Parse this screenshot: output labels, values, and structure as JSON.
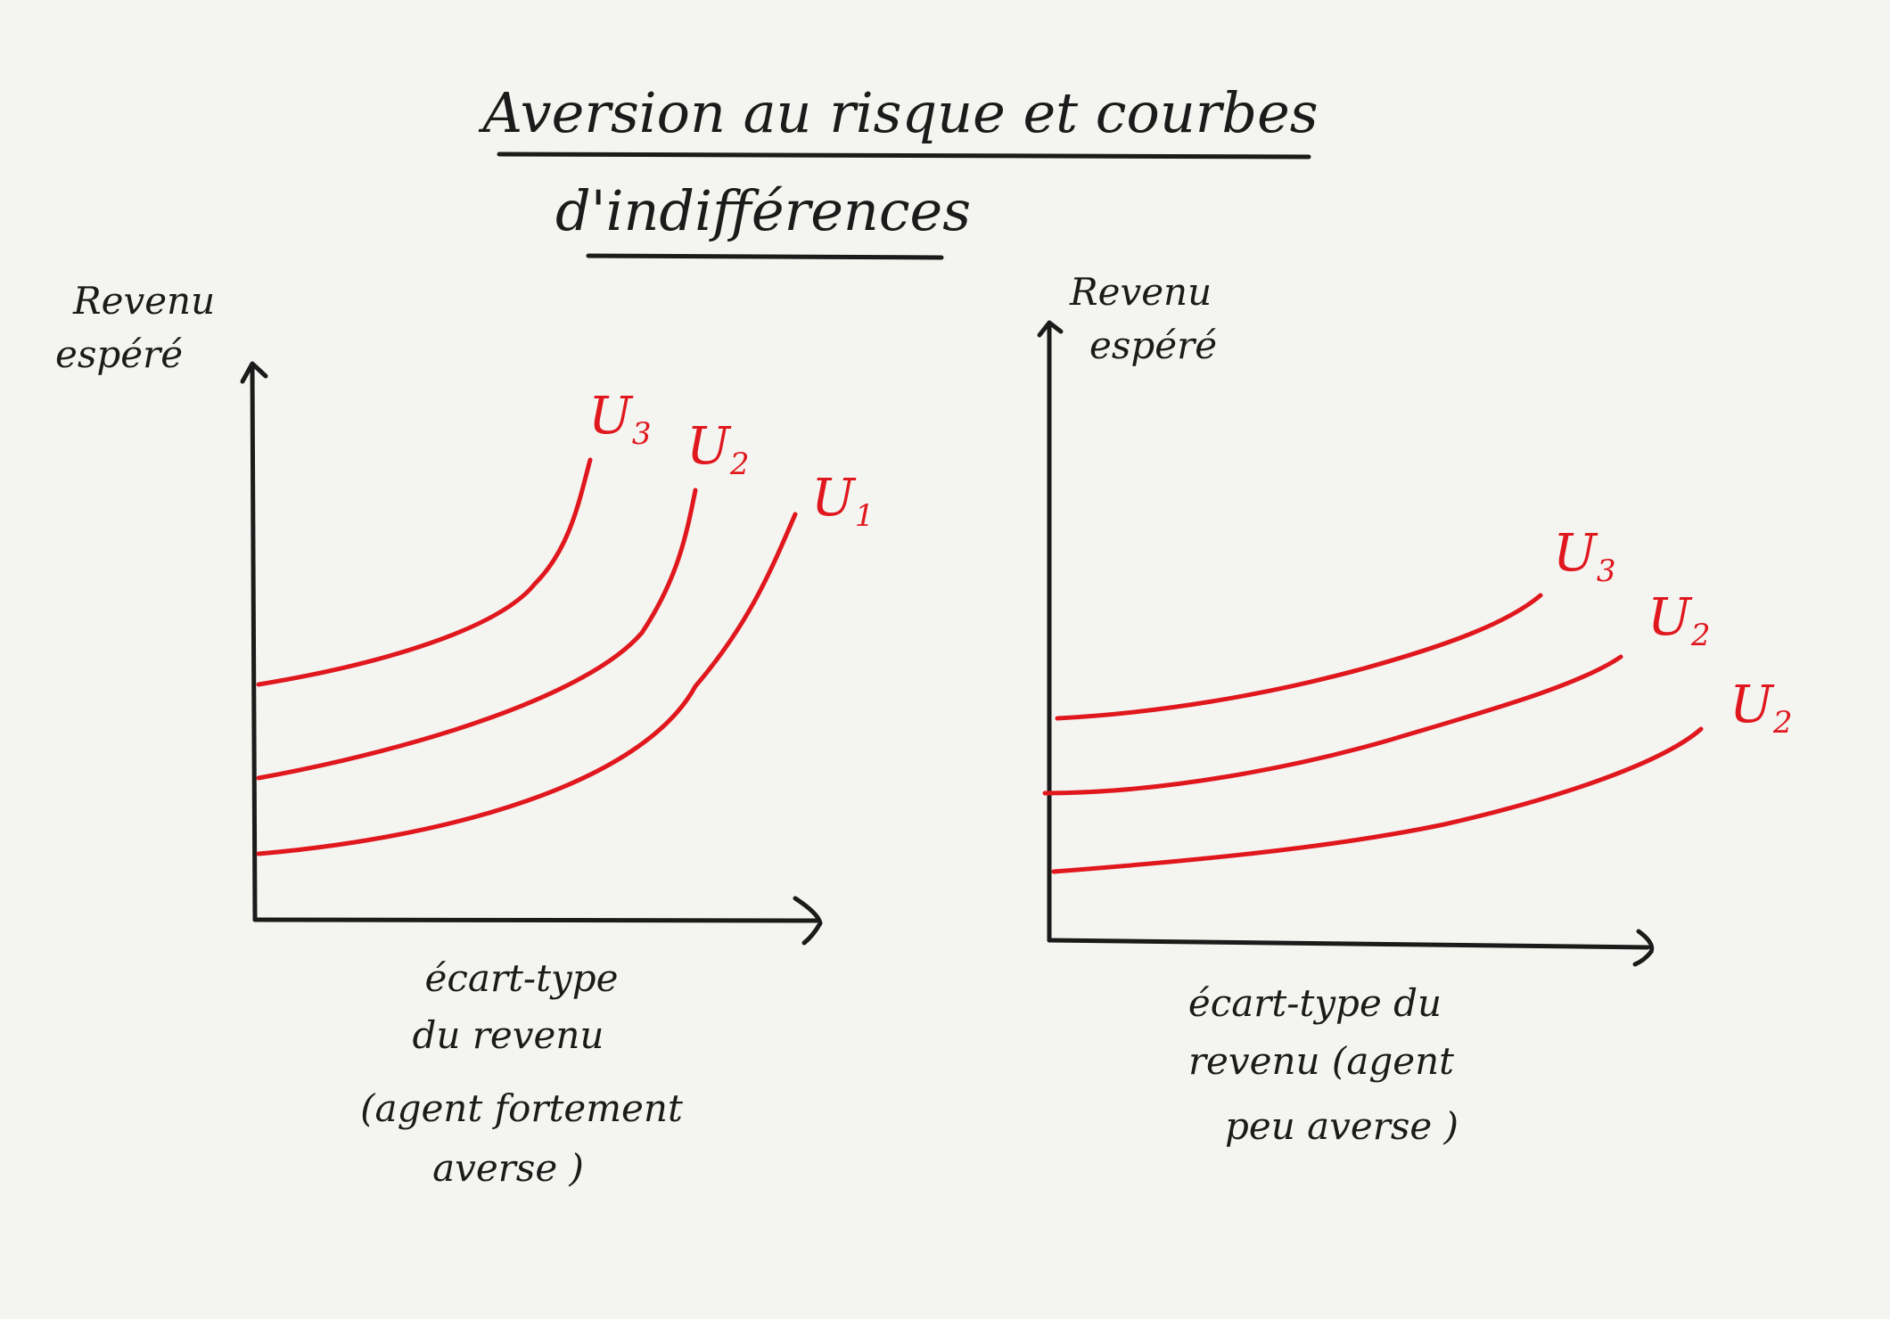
{
  "title": {
    "line1": "Aversion au risque et courbes",
    "line2": "d'indifférences"
  },
  "ink_color": "#1b1b1b",
  "curve_color": "#e0181e",
  "panels": [
    {
      "y_label": [
        "Revenu",
        "espéré"
      ],
      "x_label": [
        "écart-type",
        "du revenu",
        "(agent fortement",
        "averse )"
      ],
      "curves": [
        {
          "letter": "U",
          "sub": "3"
        },
        {
          "letter": "U",
          "sub": "2"
        },
        {
          "letter": "U",
          "sub": "1"
        }
      ]
    },
    {
      "y_label": [
        "Revenu",
        "espéré"
      ],
      "x_label": [
        "écart-type du",
        "revenu (agent",
        "peu averse )"
      ],
      "curves": [
        {
          "letter": "U",
          "sub": "3"
        },
        {
          "letter": "U",
          "sub": "2"
        },
        {
          "letter": "U",
          "sub": "2"
        }
      ]
    }
  ]
}
